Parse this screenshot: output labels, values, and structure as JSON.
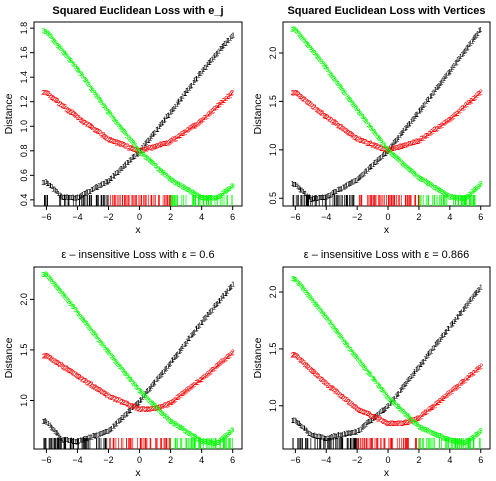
{
  "figure": {
    "layout": "2x2"
  },
  "chart_data": [
    {
      "type": "scatter",
      "title": "Squared Euclidean Loss with e_j",
      "xlabel": "x",
      "ylabel": "Distance",
      "xlim": [
        -6.8,
        6.6
      ],
      "ylim": [
        0.35,
        1.85
      ],
      "xticks": [
        -6,
        -4,
        -2,
        0,
        2,
        4,
        6
      ],
      "yticks": [
        0.4,
        0.6,
        0.8,
        1.0,
        1.2,
        1.4,
        1.6,
        1.8
      ],
      "ytick_labels": [
        "0.4",
        "0.6",
        "0.8",
        "1.0",
        "1.2",
        "1.4",
        "1.6",
        "1.8"
      ],
      "grid": false,
      "legend": "none",
      "x_range_of_points": [
        -6.2,
        6.0
      ],
      "series": [
        {
          "marker": "1",
          "color": "#000000",
          "samples": [
            [
              -6.0,
              0.55
            ],
            [
              -5.0,
              0.43
            ],
            [
              -4.0,
              0.42
            ],
            [
              -2.0,
              0.56
            ],
            [
              0.0,
              0.8
            ],
            [
              2.0,
              1.12
            ],
            [
              4.0,
              1.45
            ],
            [
              6.0,
              1.75
            ]
          ]
        },
        {
          "marker": "2",
          "color": "#ff0000",
          "samples": [
            [
              -6.0,
              1.28
            ],
            [
              -4.0,
              1.08
            ],
            [
              -2.0,
              0.9
            ],
            [
              0.0,
              0.8
            ],
            [
              2.0,
              0.88
            ],
            [
              4.0,
              1.05
            ],
            [
              6.0,
              1.28
            ]
          ]
        },
        {
          "marker": "3",
          "color": "#00ff00",
          "samples": [
            [
              -6.0,
              1.78
            ],
            [
              -4.0,
              1.47
            ],
            [
              -2.0,
              1.12
            ],
            [
              0.0,
              0.8
            ],
            [
              2.0,
              0.57
            ],
            [
              4.0,
              0.42
            ],
            [
              5.0,
              0.42
            ],
            [
              6.0,
              0.52
            ]
          ]
        }
      ],
      "rug": {
        "colors_by_region": [
          "#000000",
          "#ff0000",
          "#00ff00"
        ],
        "boundaries": [
          -2.0,
          2.0
        ]
      }
    },
    {
      "type": "scatter",
      "title": "Squared Euclidean Loss with Vertices",
      "xlabel": "x",
      "ylabel": "Distance",
      "xlim": [
        -6.8,
        6.6
      ],
      "ylim": [
        0.42,
        2.32
      ],
      "xticks": [
        -6,
        -4,
        -2,
        0,
        2,
        4,
        6
      ],
      "yticks": [
        0.5,
        1.0,
        1.5,
        2.0
      ],
      "ytick_labels": [
        "0.5",
        "1.0",
        "1.5",
        "2.0"
      ],
      "grid": false,
      "legend": "none",
      "x_range_of_points": [
        -6.2,
        6.0
      ],
      "series": [
        {
          "marker": "1",
          "color": "#000000",
          "samples": [
            [
              -6.0,
              0.65
            ],
            [
              -5.0,
              0.5
            ],
            [
              -4.0,
              0.52
            ],
            [
              -2.0,
              0.7
            ],
            [
              0.0,
              1.0
            ],
            [
              2.0,
              1.4
            ],
            [
              4.0,
              1.82
            ],
            [
              6.0,
              2.25
            ]
          ]
        },
        {
          "marker": "2",
          "color": "#ff0000",
          "samples": [
            [
              -6.0,
              1.6
            ],
            [
              -4.0,
              1.35
            ],
            [
              -2.0,
              1.12
            ],
            [
              0.0,
              1.0
            ],
            [
              2.0,
              1.1
            ],
            [
              4.0,
              1.32
            ],
            [
              6.0,
              1.6
            ]
          ]
        },
        {
          "marker": "3",
          "color": "#00ff00",
          "samples": [
            [
              -6.0,
              2.25
            ],
            [
              -4.0,
              1.85
            ],
            [
              -2.0,
              1.42
            ],
            [
              0.0,
              1.0
            ],
            [
              2.0,
              0.72
            ],
            [
              4.0,
              0.52
            ],
            [
              5.0,
              0.5
            ],
            [
              6.0,
              0.65
            ]
          ]
        }
      ],
      "rug": {
        "colors_by_region": [
          "#000000",
          "#ff0000",
          "#00ff00"
        ],
        "boundaries": [
          -2.0,
          2.0
        ]
      }
    },
    {
      "type": "scatter",
      "title": "ε – insensitive Loss with ε = 0.6",
      "xlabel": "x",
      "ylabel": "Distance",
      "xlim": [
        -6.8,
        6.6
      ],
      "ylim": [
        0.52,
        2.32
      ],
      "xticks": [
        -6,
        -4,
        -2,
        0,
        2,
        4,
        6
      ],
      "yticks": [
        1.0,
        1.5,
        2.0
      ],
      "ytick_labels": [
        "1.0",
        "1.5",
        "2.0"
      ],
      "grid": false,
      "legend": "none",
      "x_range_of_points": [
        -6.2,
        6.0
      ],
      "series": [
        {
          "marker": "1",
          "color": "#000000",
          "samples": [
            [
              -6.0,
              0.8
            ],
            [
              -5.0,
              0.62
            ],
            [
              -4.0,
              0.6
            ],
            [
              -2.0,
              0.7
            ],
            [
              0.0,
              1.0
            ],
            [
              2.0,
              1.38
            ],
            [
              4.0,
              1.78
            ],
            [
              6.0,
              2.15
            ]
          ]
        },
        {
          "marker": "2",
          "color": "#ff0000",
          "samples": [
            [
              -6.0,
              1.45
            ],
            [
              -4.0,
              1.25
            ],
            [
              -2.0,
              1.05
            ],
            [
              0.0,
              0.92
            ],
            [
              1.0,
              0.92
            ],
            [
              2.0,
              0.98
            ],
            [
              4.0,
              1.22
            ],
            [
              6.0,
              1.48
            ]
          ]
        },
        {
          "marker": "3",
          "color": "#00ff00",
          "samples": [
            [
              -6.0,
              2.25
            ],
            [
              -4.0,
              1.88
            ],
            [
              -2.0,
              1.48
            ],
            [
              0.0,
              1.1
            ],
            [
              2.0,
              0.8
            ],
            [
              4.0,
              0.6
            ],
            [
              5.0,
              0.58
            ],
            [
              6.0,
              0.72
            ]
          ]
        }
      ],
      "rug": {
        "colors_by_region": [
          "#000000",
          "#ff0000",
          "#00ff00"
        ],
        "boundaries": [
          -2.0,
          2.0
        ]
      }
    },
    {
      "type": "scatter",
      "title": "ε – insensitive Loss with ε = 0.866",
      "xlabel": "x",
      "ylabel": "Distance",
      "xlim": [
        -6.8,
        6.6
      ],
      "ylim": [
        0.62,
        2.22
      ],
      "xticks": [
        -6,
        -4,
        -2,
        0,
        2,
        4,
        6
      ],
      "yticks": [
        1.0,
        1.5,
        2.0
      ],
      "ytick_labels": [
        "1.0",
        "1.5",
        "2.0"
      ],
      "grid": false,
      "legend": "none",
      "x_range_of_points": [
        -6.2,
        6.0
      ],
      "series": [
        {
          "marker": "1",
          "color": "#000000",
          "samples": [
            [
              -6.0,
              0.88
            ],
            [
              -5.0,
              0.75
            ],
            [
              -4.0,
              0.72
            ],
            [
              -2.0,
              0.78
            ],
            [
              0.0,
              1.0
            ],
            [
              2.0,
              1.35
            ],
            [
              4.0,
              1.7
            ],
            [
              6.0,
              2.05
            ]
          ]
        },
        {
          "marker": "2",
          "color": "#ff0000",
          "samples": [
            [
              -6.0,
              1.45
            ],
            [
              -4.0,
              1.2
            ],
            [
              -2.0,
              0.98
            ],
            [
              0.0,
              0.85
            ],
            [
              1.0,
              0.85
            ],
            [
              2.0,
              0.9
            ],
            [
              4.0,
              1.12
            ],
            [
              6.0,
              1.35
            ]
          ]
        },
        {
          "marker": "3",
          "color": "#00ff00",
          "samples": [
            [
              -6.0,
              2.12
            ],
            [
              -4.0,
              1.78
            ],
            [
              -2.0,
              1.42
            ],
            [
              0.0,
              1.08
            ],
            [
              2.0,
              0.82
            ],
            [
              4.0,
              0.7
            ],
            [
              5.0,
              0.68
            ],
            [
              6.0,
              0.78
            ]
          ]
        }
      ],
      "rug": {
        "colors_by_region": [
          "#000000",
          "#ff0000",
          "#00ff00"
        ],
        "boundaries": [
          -2.0,
          2.0
        ]
      }
    }
  ]
}
